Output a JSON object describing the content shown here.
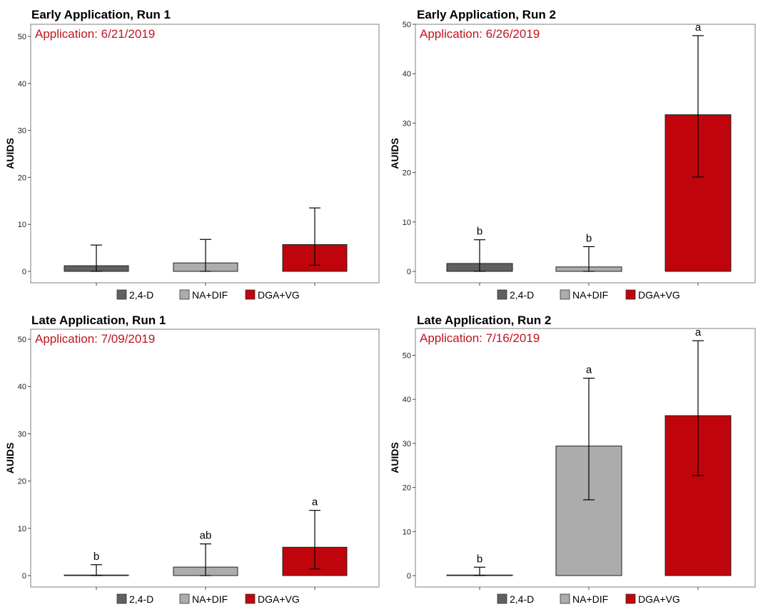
{
  "chart_data": [
    {
      "type": "bar",
      "title": "Early Application, Run 1",
      "annotation": "Application: 6/21/2019",
      "ylabel": "AUIDS",
      "ylim": [
        0,
        51
      ],
      "yticks": [
        0,
        10,
        20,
        30,
        40,
        50
      ],
      "categories": [
        "2,4-D",
        "NA+DIF",
        "DGA+VG"
      ],
      "values": [
        1.2,
        1.8,
        5.7
      ],
      "error_low": [
        0,
        0,
        1.3
      ],
      "error_high": [
        5.6,
        6.8,
        13.5
      ],
      "significance": [
        "",
        "",
        ""
      ]
    },
    {
      "type": "bar",
      "title": "Early Application, Run 2",
      "annotation": "Application: 6/26/2019",
      "ylabel": "AUIDS",
      "ylim": [
        0,
        50
      ],
      "yticks": [
        0,
        10,
        20,
        30,
        40,
        50
      ],
      "categories": [
        "2,4-D",
        "NA+DIF",
        "DGA+VG"
      ],
      "values": [
        1.6,
        0.9,
        31.7
      ],
      "error_low": [
        0,
        0,
        19.1
      ],
      "error_high": [
        6.4,
        5.0,
        47.7
      ],
      "significance": [
        "b",
        "b",
        "a"
      ]
    },
    {
      "type": "bar",
      "title": "Late Application, Run 1",
      "annotation": "Application: 7/09/2019",
      "ylabel": "AUIDS",
      "ylim": [
        0,
        51
      ],
      "yticks": [
        0,
        10,
        20,
        30,
        40,
        50
      ],
      "categories": [
        "2,4-D",
        "NA+DIF",
        "DGA+VG"
      ],
      "values": [
        0,
        1.8,
        6.0
      ],
      "error_low": [
        0,
        0,
        1.4
      ],
      "error_high": [
        2.3,
        6.7,
        13.8
      ],
      "significance": [
        "b",
        "ab",
        "a"
      ]
    },
    {
      "type": "bar",
      "title": "Late Application, Run 2",
      "annotation": "Application: 7/16/2019",
      "ylabel": "AUIDS",
      "ylim": [
        0,
        56
      ],
      "yticks": [
        0,
        10,
        20,
        30,
        40,
        50
      ],
      "categories": [
        "2,4-D",
        "NA+DIF",
        "DGA+VG"
      ],
      "values": [
        0,
        29.4,
        36.3
      ],
      "error_low": [
        0,
        17.2,
        22.7
      ],
      "error_high": [
        1.9,
        44.8,
        53.3
      ],
      "significance": [
        "b",
        "a",
        "a"
      ]
    }
  ],
  "legend": [
    "2,4-D",
    "NA+DIF",
    "DGA+VG"
  ],
  "colors": {
    "2,4-D": "#5f6062",
    "NA+DIF": "#acacac",
    "DGA+VG": "#c0040b",
    "annotation": "#c0151d",
    "axis": "#7f7f7f"
  }
}
